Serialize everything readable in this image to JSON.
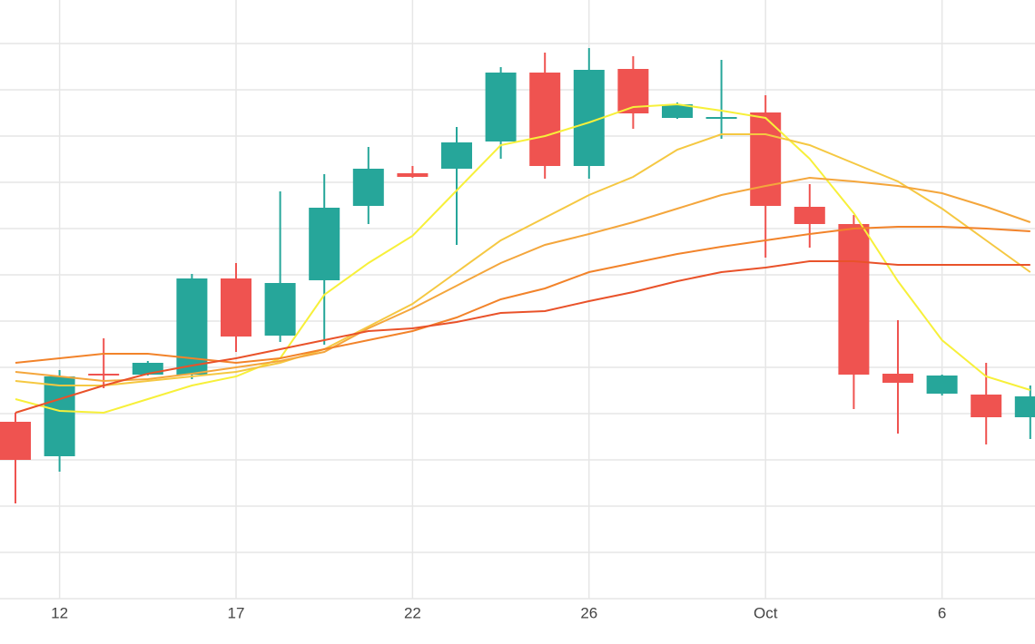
{
  "chart_data": {
    "type": "candlestick",
    "categories": [
      null,
      "12",
      null,
      null,
      null,
      "17",
      null,
      null,
      null,
      "22",
      null,
      null,
      null,
      "26",
      null,
      null,
      null,
      "Oct",
      null,
      null,
      null,
      "6",
      null,
      null
    ],
    "open": [
      195,
      157,
      248,
      247,
      247,
      353,
      290,
      351,
      433,
      469,
      474,
      504,
      580,
      477,
      584,
      530,
      529,
      536,
      432,
      413,
      248,
      226,
      225,
      200
    ],
    "high": [
      205,
      252,
      287,
      262,
      358,
      370,
      449,
      468,
      498,
      477,
      520,
      586,
      602,
      607,
      598,
      547,
      594,
      555,
      457,
      423,
      307,
      247,
      260,
      235
    ],
    "low": [
      105,
      140,
      232,
      246,
      242,
      272,
      283,
      280,
      413,
      464,
      390,
      485,
      463,
      463,
      518,
      529,
      507,
      376,
      387,
      209,
      182,
      224,
      170,
      176
    ],
    "close": [
      153,
      245,
      246,
      260,
      353,
      289,
      348,
      431,
      474,
      465,
      503,
      580,
      477,
      583,
      535,
      545,
      531,
      433,
      413,
      247,
      238,
      246,
      200,
      223
    ],
    "up_color": "#26a69a",
    "down_color": "#ef5350",
    "lines": [
      {
        "color": "#f7f03a",
        "values": [
          220,
          207,
          205,
          220,
          235,
          245,
          265,
          335,
          370,
          400,
          450,
          500,
          510,
          525,
          542,
          545,
          538,
          530,
          485,
          425,
          350,
          285,
          245,
          230
        ]
      },
      {
        "color": "#f5c842",
        "values": [
          240,
          235,
          235,
          240,
          245,
          250,
          260,
          275,
          300,
          325,
          360,
          395,
          420,
          445,
          465,
          495,
          512,
          512,
          500,
          480,
          460,
          430,
          395,
          360
        ]
      },
      {
        "color": "#f4a63c",
        "values": [
          250,
          245,
          240,
          242,
          248,
          255,
          262,
          272,
          298,
          320,
          345,
          370,
          390,
          402,
          415,
          430,
          445,
          455,
          464,
          460,
          455,
          447,
          432,
          415
        ]
      },
      {
        "color": "#f2832a",
        "values": [
          260,
          265,
          270,
          270,
          265,
          260,
          265,
          275,
          285,
          295,
          310,
          330,
          342,
          360,
          370,
          380,
          388,
          395,
          402,
          408,
          410,
          410,
          408,
          405
        ]
      },
      {
        "color": "#e9522a",
        "values": [
          205,
          220,
          235,
          248,
          257,
          265,
          275,
          285,
          295,
          298,
          305,
          315,
          317,
          328,
          338,
          350,
          360,
          365,
          372,
          372,
          368,
          368,
          368,
          368
        ]
      }
    ],
    "ylim": [
      0,
      660
    ],
    "yticks": [
      0,
      51,
      102,
      153,
      204,
      255,
      306,
      357,
      408,
      459,
      510,
      561,
      612
    ],
    "grid": true
  }
}
